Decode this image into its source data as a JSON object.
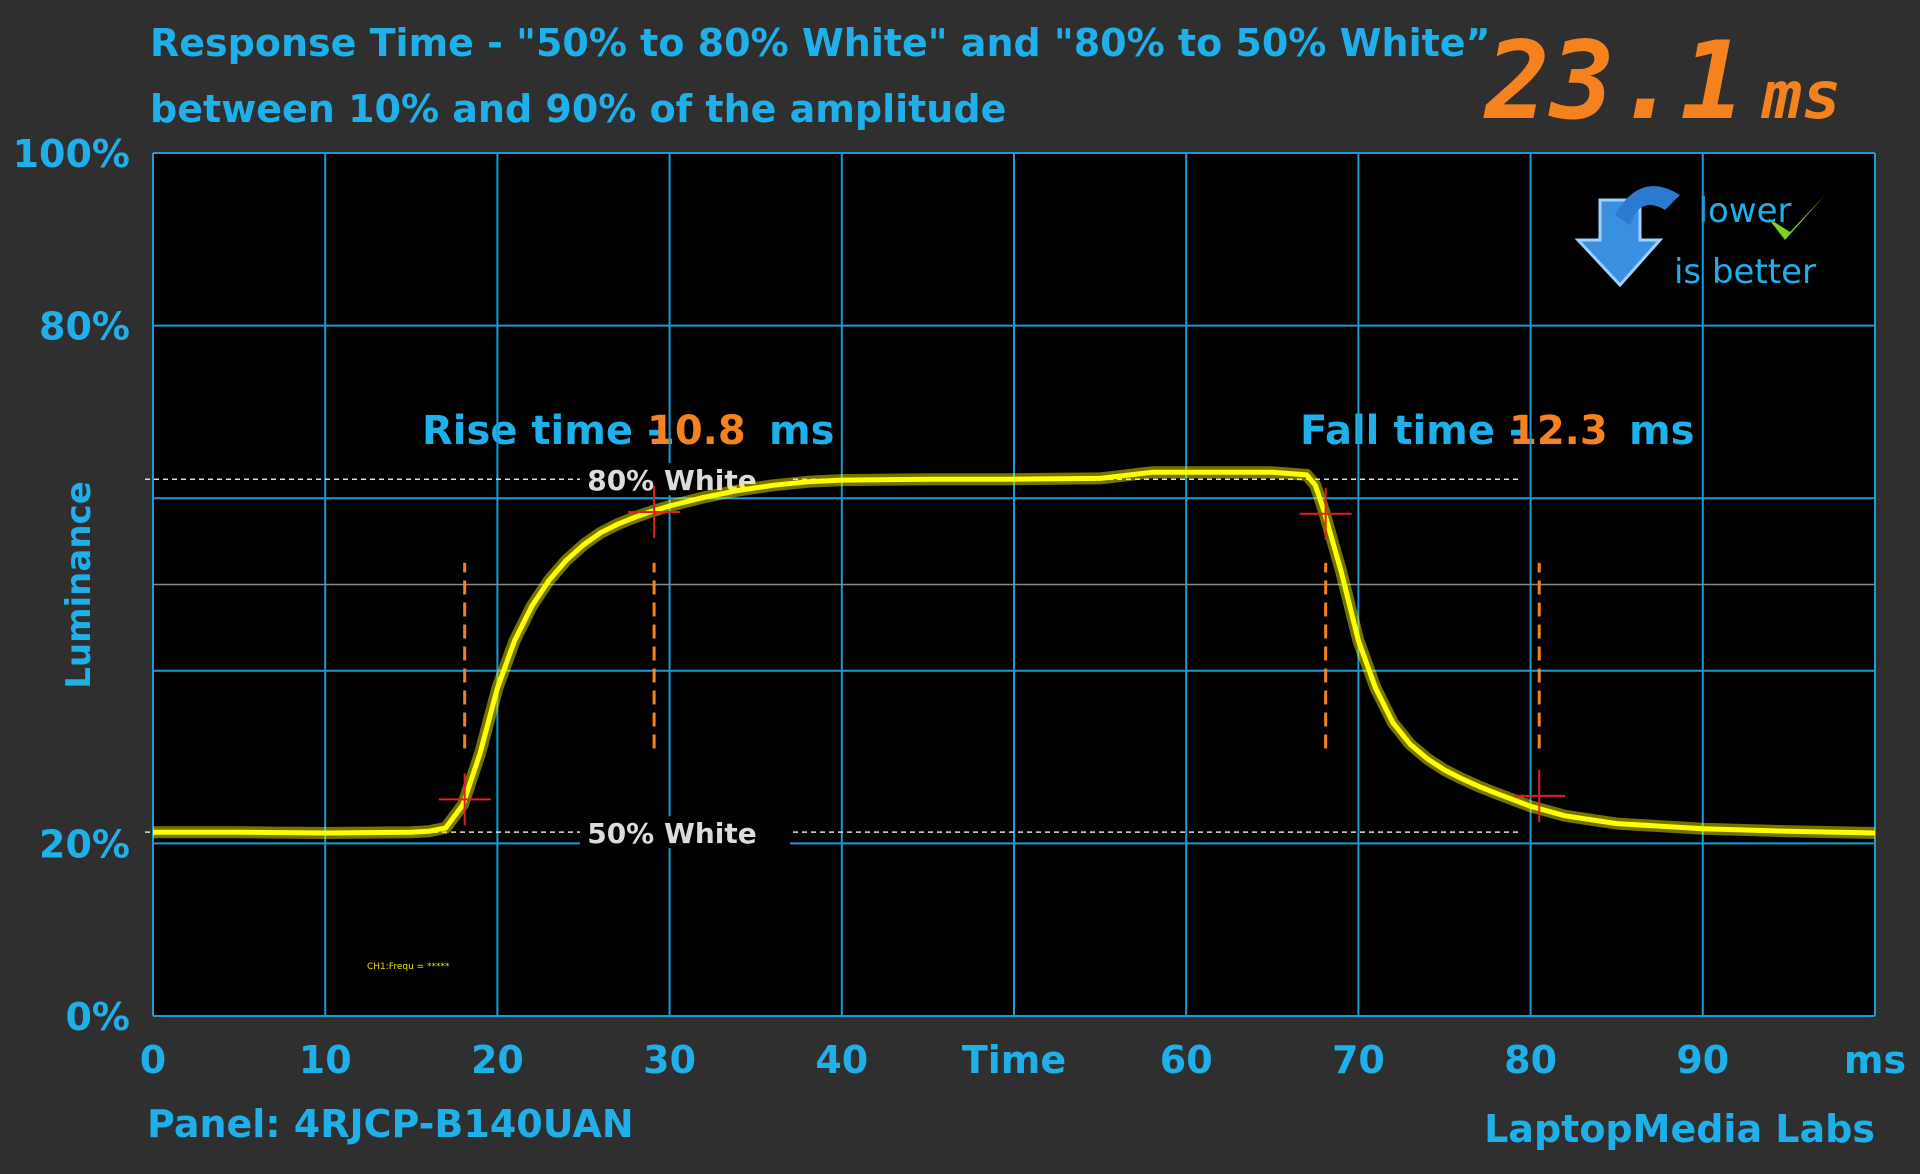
{
  "chart_data": {
    "type": "line",
    "title": "Response Time - \"50% to 80% White\" and \"80% to 50% White”",
    "subtitle": "between 10% and 90% of the amplitude",
    "ylabel": "Luminance",
    "result": "23.1",
    "result_unit": "ms",
    "hint": [
      "lower",
      "is better"
    ],
    "rise": {
      "label": "Rise time - ",
      "value": 10.8,
      "unit": "ms"
    },
    "fall": {
      "label": "Fall time - ",
      "value": 12.3,
      "unit": "ms"
    },
    "panel": "Panel: 4RJCP-B140UAN",
    "source": "LaptopMedia Labs",
    "channel_note": "CH1:Frequ = *****",
    "xlim": [
      0,
      100
    ],
    "ylim": [
      0,
      100
    ],
    "xticks": [
      0,
      10,
      20,
      30,
      40,
      {
        "value": 50,
        "label": "Time"
      },
      60,
      70,
      80,
      90,
      {
        "value": 100,
        "label": "ms"
      }
    ],
    "yticks": [
      {
        "value": 0,
        "label": "0%"
      },
      {
        "value": 20,
        "label": "20%"
      },
      {
        "value": 80,
        "label": "80%"
      },
      {
        "value": 100,
        "label": "100%"
      }
    ],
    "grid_x": [
      0,
      10,
      20,
      30,
      40,
      50,
      60,
      70,
      80,
      90,
      100
    ],
    "grid_y": [
      0,
      20,
      40,
      60,
      80,
      100
    ],
    "midline": 50,
    "reference_lines": [
      {
        "value": 62.2,
        "label": "80% White"
      },
      {
        "value": 21.3,
        "label": "50% White"
      }
    ],
    "cursors": {
      "x": [
        18.1,
        29.1,
        68.1,
        80.5
      ],
      "span": [
        31,
        52.5
      ],
      "color": "#f5821f"
    },
    "markers": [
      {
        "x": 18.1,
        "y": 25.1
      },
      {
        "x": 29.1,
        "y": 58.4
      },
      {
        "x": 68.1,
        "y": 58.2
      },
      {
        "x": 80.5,
        "y": 25.5
      }
    ],
    "series": [
      {
        "name": "CH1",
        "color": "#ffff00",
        "x": [
          0,
          5,
          10,
          15,
          16,
          17,
          18,
          19,
          20,
          21,
          22,
          23,
          24,
          25,
          26,
          27,
          28,
          29,
          30,
          32,
          34,
          36,
          38,
          40,
          45,
          50,
          55,
          58,
          60,
          65,
          67,
          67.5,
          68,
          69,
          70,
          71,
          72,
          73,
          74,
          75,
          76,
          77,
          78,
          80,
          82,
          85,
          90,
          95,
          100
        ],
        "values": [
          21.3,
          21.3,
          21.2,
          21.3,
          21.4,
          21.8,
          24.5,
          30.5,
          38,
          43.5,
          47.5,
          50.5,
          52.8,
          54.6,
          56,
          57,
          57.8,
          58.5,
          59.1,
          60.1,
          60.9,
          61.5,
          61.9,
          62.1,
          62.2,
          62.2,
          62.3,
          63,
          63,
          63,
          62.7,
          61.5,
          58.5,
          51.5,
          43.5,
          38,
          34,
          31.5,
          29.8,
          28.5,
          27.5,
          26.6,
          25.8,
          24.3,
          23.2,
          22.3,
          21.7,
          21.4,
          21.2
        ]
      }
    ]
  }
}
